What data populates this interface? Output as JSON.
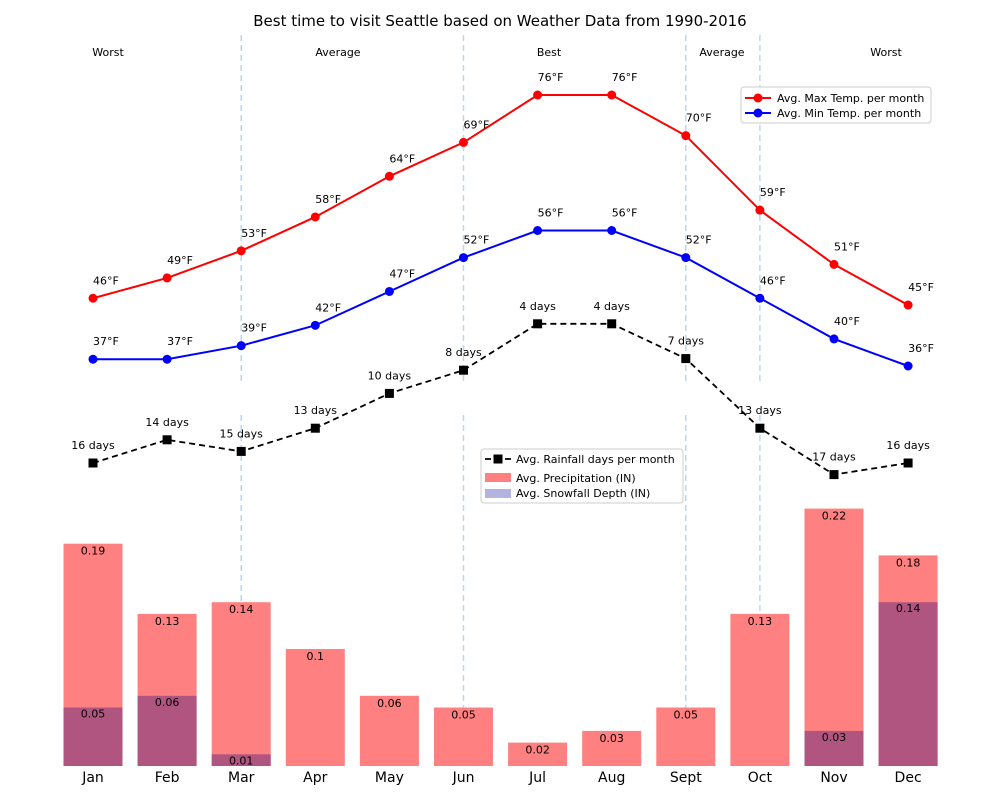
{
  "title": "Best time to visit Seattle based on Weather Data from 1990-2016",
  "colors": {
    "max_temp": "#ff0000",
    "min_temp": "#0000ff",
    "rainfall_days": "#000000",
    "precipitation": "#ff8080",
    "snowfall": "#b0557f",
    "season_divider": "#b9d7f0"
  },
  "chart_data": [
    {
      "type": "line",
      "categories": [
        "Jan",
        "Feb",
        "Mar",
        "Apr",
        "May",
        "Jun",
        "Jul",
        "Aug",
        "Sept",
        "Oct",
        "Nov",
        "Dec"
      ],
      "series": [
        {
          "name": "Avg. Max Temp. per month",
          "values": [
            46,
            49,
            53,
            58,
            64,
            69,
            76,
            76,
            70,
            59,
            51,
            45
          ],
          "labels": [
            "46°F",
            "49°F",
            "53°F",
            "58°F",
            "64°F",
            "69°F",
            "76°F",
            "76°F",
            "70°F",
            "59°F",
            "51°F",
            "45°F"
          ]
        },
        {
          "name": "Avg. Min Temp. per month",
          "values": [
            37,
            37,
            39,
            42,
            47,
            52,
            56,
            56,
            52,
            46,
            40,
            36
          ],
          "labels": [
            "37°F",
            "37°F",
            "39°F",
            "42°F",
            "47°F",
            "52°F",
            "56°F",
            "56°F",
            "52°F",
            "46°F",
            "40°F",
            "36°F"
          ]
        }
      ],
      "season_labels": [
        "Worst",
        "Average",
        "Best",
        "Average",
        "Worst"
      ],
      "legend": "top-right",
      "grid": false
    },
    {
      "type": "bar",
      "categories": [
        "Jan",
        "Feb",
        "Mar",
        "Apr",
        "May",
        "Jun",
        "Jul",
        "Aug",
        "Sept",
        "Oct",
        "Nov",
        "Dec"
      ],
      "series": [
        {
          "name": "Avg. Rainfall days per month",
          "type": "line",
          "values": [
            16,
            14,
            15,
            13,
            10,
            8,
            4,
            4,
            7,
            13,
            17,
            16
          ],
          "labels": [
            "16 days",
            "14 days",
            "15 days",
            "13 days",
            "10 days",
            "8 days",
            "4 days",
            "4 days",
            "7 days",
            "13 days",
            "17 days",
            "16 days"
          ]
        },
        {
          "name": "Avg. Precipitation (IN)",
          "type": "bar",
          "values": [
            0.19,
            0.13,
            0.14,
            0.1,
            0.06,
            0.05,
            0.02,
            0.03,
            0.05,
            0.13,
            0.22,
            0.18
          ],
          "labels": [
            "0.19",
            "0.13",
            "0.14",
            "0.1",
            "0.06",
            "0.05",
            "0.02",
            "0.03",
            "0.05",
            "0.13",
            "0.22",
            "0.18"
          ]
        },
        {
          "name": "Avg. Snowfall Depth (IN)",
          "type": "bar",
          "values": [
            0.05,
            0.06,
            0.01,
            0,
            0,
            0,
            0,
            0,
            0,
            0,
            0.03,
            0.14
          ],
          "labels": [
            "0.05",
            "0.06",
            "0.01",
            "",
            "",
            "",
            "",
            "",
            "",
            "",
            "0.03",
            "0.14"
          ]
        }
      ],
      "legend": "top-center",
      "grid": false
    }
  ]
}
